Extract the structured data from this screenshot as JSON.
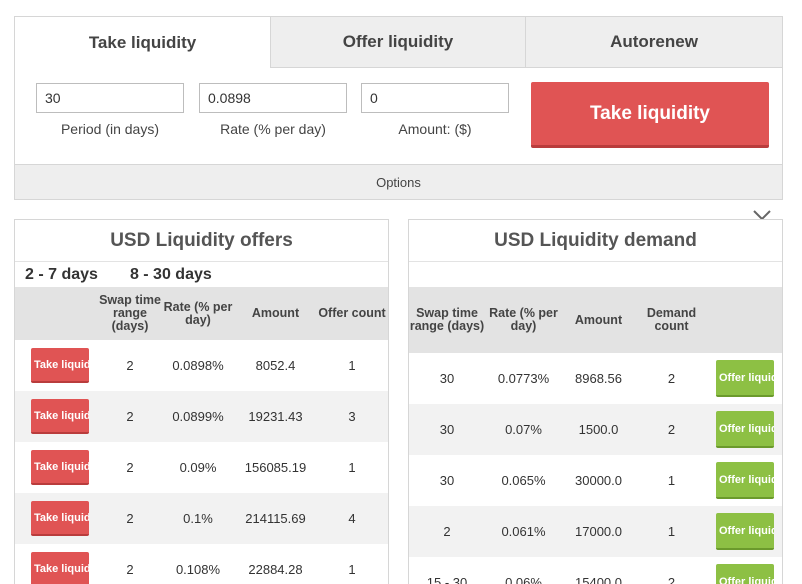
{
  "tabs": [
    "Take liquidity",
    "Offer liquidity",
    "Autorenew"
  ],
  "form": {
    "period": {
      "value": "30",
      "label": "Period (in days)"
    },
    "rate": {
      "value": "0.0898",
      "label": "Rate (% per day)"
    },
    "amount": {
      "value": "0",
      "label": "Amount: ($)"
    },
    "submit_label": "Take liquidity",
    "options_label": "Options"
  },
  "offers": {
    "title": "USD Liquidity offers",
    "ranges": [
      "2 - 7 days",
      "8 - 30 days"
    ],
    "headers": [
      "",
      "Swap time range (days)",
      "Rate (% per day)",
      "Amount",
      "Offer count"
    ],
    "button_label": "Take liquidity",
    "rows": [
      {
        "range": "2",
        "rate": "0.0898%",
        "amount": "8052.4",
        "count": "1"
      },
      {
        "range": "2",
        "rate": "0.0899%",
        "amount": "19231.43",
        "count": "3"
      },
      {
        "range": "2",
        "rate": "0.09%",
        "amount": "156085.19",
        "count": "1"
      },
      {
        "range": "2",
        "rate": "0.1%",
        "amount": "214115.69",
        "count": "4"
      },
      {
        "range": "2",
        "rate": "0.108%",
        "amount": "22884.28",
        "count": "1"
      }
    ]
  },
  "demand": {
    "title": "USD Liquidity demand",
    "headers": [
      "Swap time range (days)",
      "Rate (% per day)",
      "Amount",
      "Demand count",
      ""
    ],
    "button_label": "Offer liquidity",
    "rows": [
      {
        "range": "30",
        "rate": "0.0773%",
        "amount": "8968.56",
        "count": "2"
      },
      {
        "range": "30",
        "rate": "0.07%",
        "amount": "1500.0",
        "count": "2"
      },
      {
        "range": "30",
        "rate": "0.065%",
        "amount": "30000.0",
        "count": "1"
      },
      {
        "range": "2",
        "rate": "0.061%",
        "amount": "17000.0",
        "count": "1"
      },
      {
        "range": "15 - 30",
        "rate": "0.06%",
        "amount": "15400.0",
        "count": "2"
      }
    ]
  },
  "colors": {
    "take": "#e05454",
    "offer": "#8dc044",
    "header_bg": "#e3e3e3"
  },
  "icons": {
    "collapse": "chevron-down-icon"
  }
}
